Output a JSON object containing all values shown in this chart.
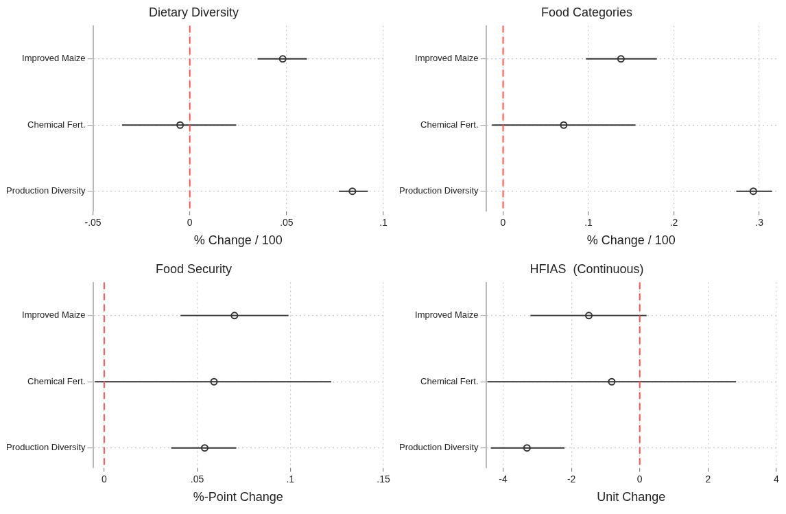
{
  "chart_data": [
    {
      "type": "scatter",
      "orientation": "horizontal",
      "title": "Dietary Diversity",
      "xlabel": "% Change / 100",
      "categories": [
        "Improved Maize",
        "Chemical Fert.",
        "Production Diversity"
      ],
      "color": "#333333",
      "marker": "circle",
      "grid": true,
      "legend": false,
      "values": [
        0.048,
        -0.005,
        0.084
      ],
      "errors": [
        [
          0.035,
          0.0605
        ],
        [
          -0.035,
          0.024
        ],
        [
          0.077,
          0.092
        ]
      ],
      "xlim": [
        -0.05,
        0.1
      ],
      "xticks": [
        {
          "value": -0.05,
          "label": "-.05"
        },
        0,
        {
          "value": 0.05,
          "label": ".05"
        },
        {
          "value": 0.1,
          "label": ".1"
        }
      ],
      "ref_lines": [
        {
          "axis": "x",
          "value": 0,
          "color": "#ff5050",
          "line_style": "dashed"
        }
      ]
    },
    {
      "type": "scatter",
      "orientation": "horizontal",
      "title": "Food Categories",
      "xlabel": "% Change / 100",
      "categories": [
        "Improved Maize",
        "Chemical Fert.",
        "Production Diversity"
      ],
      "color": "#333333",
      "marker": "circle",
      "grid": true,
      "legend": false,
      "values": [
        0.138,
        0.071,
        0.293
      ],
      "errors": [
        [
          0.097,
          0.18
        ],
        [
          -0.013,
          0.155
        ],
        [
          0.273,
          0.315
        ]
      ],
      "xlim": [
        -0.02,
        0.32
      ],
      "xticks": [
        0,
        {
          "value": 0.1,
          "label": ".1"
        },
        {
          "value": 0.2,
          "label": ".2"
        },
        {
          "value": 0.3,
          "label": ".3"
        }
      ],
      "ref_lines": [
        {
          "axis": "x",
          "value": 0,
          "color": "#ff5050",
          "line_style": "dashed"
        }
      ]
    },
    {
      "type": "scatter",
      "orientation": "horizontal",
      "title": "Food Security",
      "xlabel": "%-Point Change",
      "categories": [
        "Improved Maize",
        "Chemical Fert.",
        "Production Diversity"
      ],
      "color": "#333333",
      "marker": "circle",
      "grid": true,
      "legend": false,
      "values": [
        0.07,
        0.059,
        0.054
      ],
      "errors": [
        [
          0.041,
          0.099
        ],
        [
          -0.005,
          0.122
        ],
        [
          0.036,
          0.071
        ]
      ],
      "xlim": [
        -0.006,
        0.15
      ],
      "xticks": [
        0,
        {
          "value": 0.05,
          "label": ".05"
        },
        {
          "value": 0.1,
          "label": ".1"
        },
        {
          "value": 0.15,
          "label": ".15"
        }
      ],
      "ref_lines": [
        {
          "axis": "x",
          "value": 0,
          "color": "#ff5050",
          "line_style": "dashed"
        }
      ]
    },
    {
      "type": "scatter",
      "orientation": "horizontal",
      "title": "HFIAS  (Continuous)",
      "xlabel": "Unit Change",
      "categories": [
        "Improved Maize",
        "Chemical Fert.",
        "Production Diversity"
      ],
      "color": "#333333",
      "marker": "circle",
      "grid": true,
      "legend": false,
      "values": [
        -1.49,
        -0.82,
        -3.3
      ],
      "errors": [
        [
          -3.2,
          0.2
        ],
        [
          -4.46,
          2.82
        ],
        [
          -4.36,
          -2.2
        ]
      ],
      "xlim": [
        -4.5,
        4
      ],
      "xticks": [
        -4,
        -2,
        0,
        2,
        4
      ],
      "ref_lines": [
        {
          "axis": "x",
          "value": 0,
          "color": "#ff5050",
          "line_style": "dashed"
        }
      ]
    }
  ]
}
